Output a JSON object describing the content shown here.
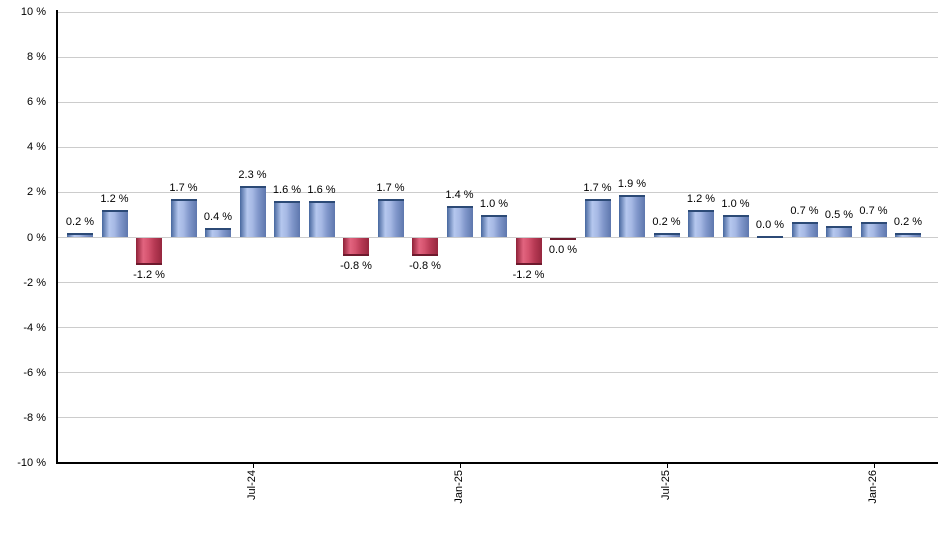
{
  "chart_data": {
    "type": "bar",
    "title": "",
    "xlabel": "",
    "ylabel": "",
    "ylim": [
      -10,
      10
    ],
    "grid": true,
    "legend": "none",
    "value_suffix": " %",
    "bars": [
      {
        "label": "0.2 %",
        "value": 0.2,
        "color": "blue"
      },
      {
        "label": "1.2 %",
        "value": 1.2,
        "color": "blue"
      },
      {
        "label": "-1.2 %",
        "value": -1.2,
        "color": "red"
      },
      {
        "label": "1.7 %",
        "value": 1.7,
        "color": "blue"
      },
      {
        "label": "0.4 %",
        "value": 0.4,
        "color": "blue"
      },
      {
        "label": "2.3 %",
        "value": 2.3,
        "color": "blue"
      },
      {
        "label": "1.6 %",
        "value": 1.6,
        "color": "blue"
      },
      {
        "label": "1.6 %",
        "value": 1.6,
        "color": "blue"
      },
      {
        "label": "-0.8 %",
        "value": -0.8,
        "color": "red"
      },
      {
        "label": "1.7 %",
        "value": 1.7,
        "color": "blue"
      },
      {
        "label": "-0.8 %",
        "value": -0.8,
        "color": "red"
      },
      {
        "label": "1.4 %",
        "value": 1.4,
        "color": "blue"
      },
      {
        "label": "1.0 %",
        "value": 1.0,
        "color": "blue"
      },
      {
        "label": "-1.2 %",
        "value": -1.2,
        "color": "red"
      },
      {
        "label": "0.0 %",
        "value": 0.0,
        "color": "red"
      },
      {
        "label": "1.7 %",
        "value": 1.7,
        "color": "blue"
      },
      {
        "label": "1.9 %",
        "value": 1.9,
        "color": "blue"
      },
      {
        "label": "0.2 %",
        "value": 0.2,
        "color": "blue"
      },
      {
        "label": "1.2 %",
        "value": 1.2,
        "color": "blue"
      },
      {
        "label": "1.0 %",
        "value": 1.0,
        "color": "blue"
      },
      {
        "label": "0.0 %",
        "value": 0.0,
        "color": "blue"
      },
      {
        "label": "0.7 %",
        "value": 0.7,
        "color": "blue"
      },
      {
        "label": "0.5 %",
        "value": 0.5,
        "color": "blue"
      },
      {
        "label": "0.7 %",
        "value": 0.7,
        "color": "blue"
      },
      {
        "label": "0.2 %",
        "value": 0.2,
        "color": "blue"
      }
    ],
    "y_ticks": [
      {
        "label": "10 %",
        "value": 10
      },
      {
        "label": "8 %",
        "value": 8
      },
      {
        "label": "6 %",
        "value": 6
      },
      {
        "label": "4 %",
        "value": 4
      },
      {
        "label": "2 %",
        "value": 2
      },
      {
        "label": "0 %",
        "value": 0
      },
      {
        "label": "-2 %",
        "value": -2
      },
      {
        "label": "-4 %",
        "value": -4
      },
      {
        "label": "-6 %",
        "value": -6
      },
      {
        "label": "-8 %",
        "value": -8
      },
      {
        "label": "-10 %",
        "value": -10
      }
    ],
    "x_ticks": [
      {
        "label": "Jul-24",
        "bar_index": 5
      },
      {
        "label": "Jan-25",
        "bar_index": 11
      },
      {
        "label": "Jul-25",
        "bar_index": 17
      },
      {
        "label": "Jan-26",
        "bar_index": 23
      }
    ],
    "colors": {
      "positive": "#7b98cf",
      "negative": "#c23a58",
      "gridline": "#cccccc",
      "axis": "#000000",
      "text": "#000000"
    }
  }
}
